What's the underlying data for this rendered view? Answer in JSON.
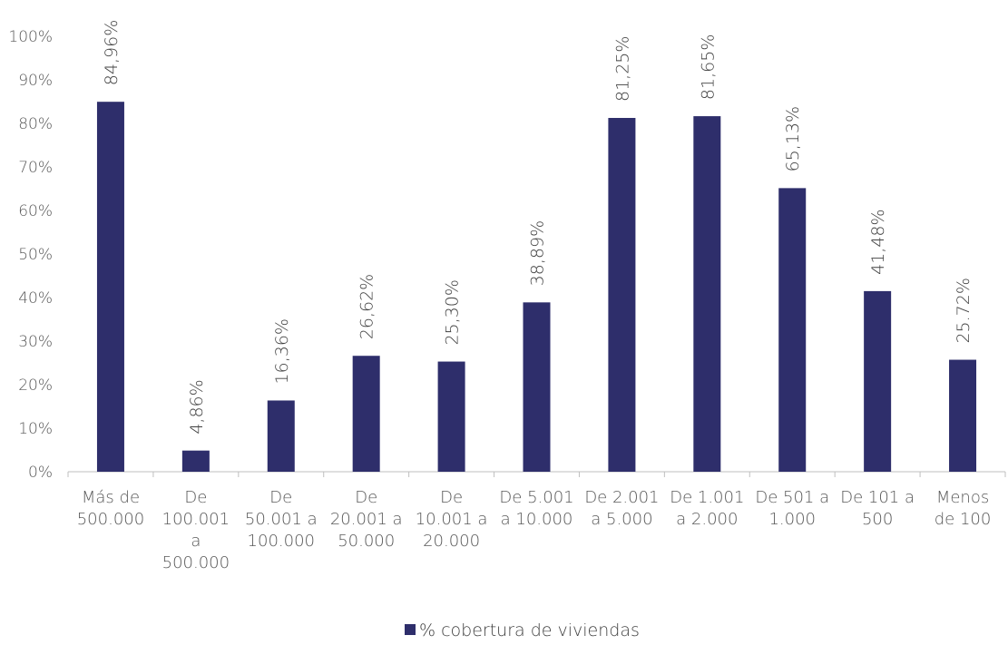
{
  "chart_data": {
    "type": "bar",
    "categories": [
      [
        "Más de",
        "500.000"
      ],
      [
        "De",
        "100.001",
        "a",
        "500.000"
      ],
      [
        "De",
        "50.001 a",
        "100.000"
      ],
      [
        "De",
        "20.001 a",
        "50.000"
      ],
      [
        "De",
        "10.001 a",
        "20.000"
      ],
      [
        "De 5.001",
        "a 10.000"
      ],
      [
        "De 2.001",
        "a 5.000"
      ],
      [
        "De 1.001",
        "a 2.000"
      ],
      [
        "De 501 a",
        "1.000"
      ],
      [
        "De 101 a",
        "500"
      ],
      [
        "Menos",
        "de 100"
      ]
    ],
    "series": [
      {
        "name": "% cobertura de viviendas",
        "values": [
          84.96,
          4.86,
          16.36,
          26.62,
          25.3,
          38.89,
          81.25,
          81.65,
          65.13,
          41.48,
          25.72
        ],
        "data_labels": [
          "84,96%",
          "4,86%",
          "16,36%",
          "26,62%",
          "25,30%",
          "38,89%",
          "81,25%",
          "81,65%",
          "65,13%",
          "41,48%",
          "25.72%"
        ],
        "color": "#2E2E6B"
      }
    ],
    "yticks": [
      "0%",
      "10%",
      "20%",
      "30%",
      "40%",
      "50%",
      "60%",
      "70%",
      "80%",
      "90%",
      "100%"
    ],
    "ylim": [
      0,
      100
    ],
    "grid": false,
    "legend_position": "bottom-center"
  }
}
